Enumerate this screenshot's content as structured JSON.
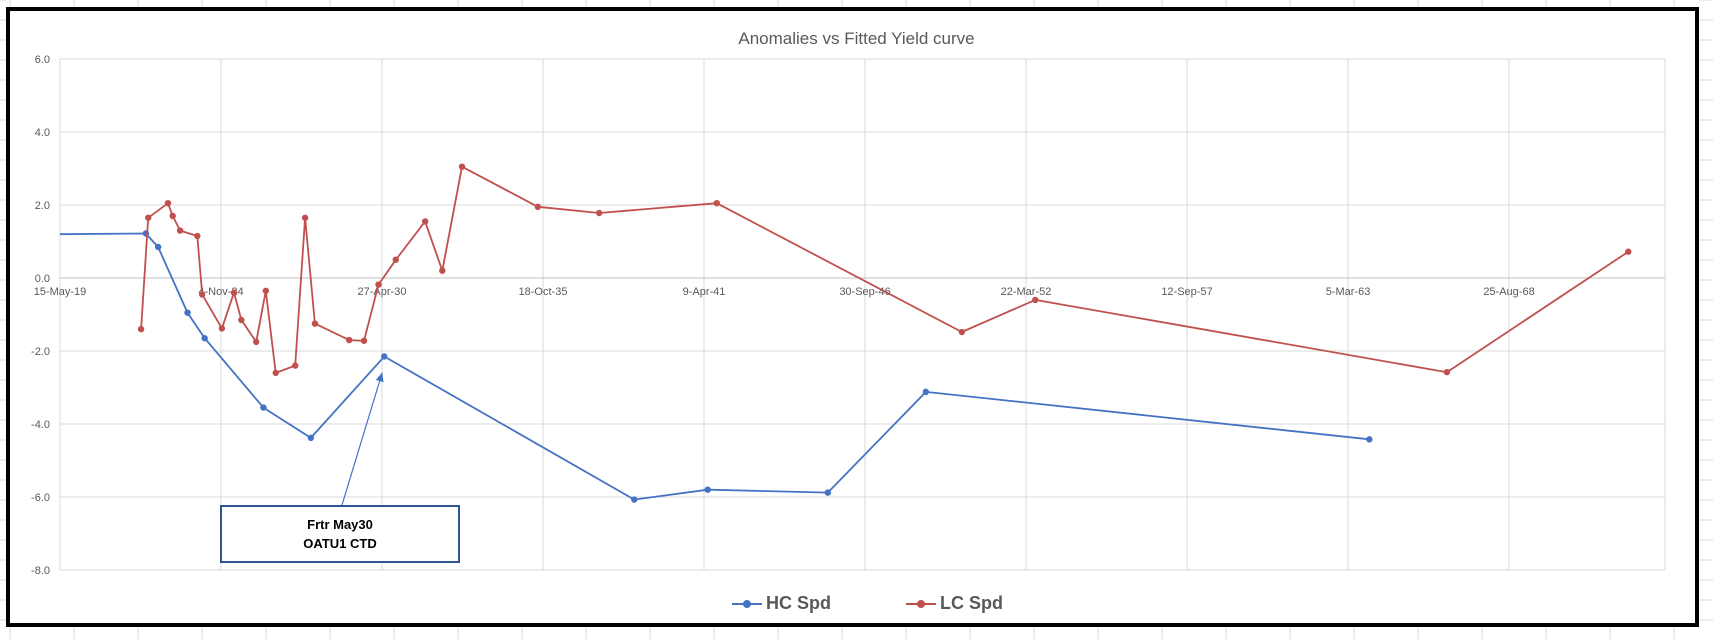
{
  "chart_data": {
    "type": "line",
    "title": "Anomalies vs Fitted Yield curve",
    "xlabel": "",
    "ylabel": "",
    "x_axis": {
      "type": "date",
      "min": "2019-05-15",
      "max": "2072-04-01",
      "ticks": [
        {
          "date": "2019-05-15",
          "label": "15-May-19"
        },
        {
          "date": "2024-11-04",
          "label": "4-Nov-24"
        },
        {
          "date": "2030-04-27",
          "label": "27-Apr-30"
        },
        {
          "date": "2035-10-18",
          "label": "18-Oct-35"
        },
        {
          "date": "2041-04-09",
          "label": "9-Apr-41"
        },
        {
          "date": "2046-09-30",
          "label": "30-Sep-46"
        },
        {
          "date": "2052-03-22",
          "label": "22-Mar-52"
        },
        {
          "date": "2057-09-12",
          "label": "12-Sep-57"
        },
        {
          "date": "2063-03-05",
          "label": "5-Mar-63"
        },
        {
          "date": "2068-08-25",
          "label": "25-Aug-68"
        }
      ]
    },
    "y_axis": {
      "min": -8.0,
      "max": 6.0,
      "ticks": [
        {
          "value": 6.0,
          "label": "6.0"
        },
        {
          "value": 4.0,
          "label": "4.0"
        },
        {
          "value": 2.0,
          "label": "2.0"
        },
        {
          "value": 0.0,
          "label": "0.0"
        },
        {
          "value": -2.0,
          "label": "-2.0"
        },
        {
          "value": -4.0,
          "label": "-4.0"
        },
        {
          "value": -6.0,
          "label": "-6.0"
        },
        {
          "value": -8.0,
          "label": "-8.0"
        }
      ]
    },
    "grid": true,
    "legend_position": "bottom",
    "series": [
      {
        "name": "HC Spd",
        "color": "#4472C4",
        "points": [
          {
            "x": "2019-05-15",
            "y": 1.2,
            "marker": false
          },
          {
            "x": "2022-04-15",
            "y": 1.22
          },
          {
            "x": "2022-09-15",
            "y": 0.85
          },
          {
            "x": "2023-09-15",
            "y": -0.95
          },
          {
            "x": "2024-04-15",
            "y": -1.65
          },
          {
            "x": "2026-04-15",
            "y": -3.55
          },
          {
            "x": "2027-11-25",
            "y": -4.38
          },
          {
            "x": "2030-05-25",
            "y": -2.15
          },
          {
            "x": "2038-11-25",
            "y": -6.07
          },
          {
            "x": "2041-05-25",
            "y": -5.8
          },
          {
            "x": "2045-06-25",
            "y": -5.88
          },
          {
            "x": "2048-10-25",
            "y": -3.12
          },
          {
            "x": "2063-11-25",
            "y": -4.42
          }
        ]
      },
      {
        "name": "LC Spd",
        "color": "#C0504D",
        "points": [
          {
            "x": "2022-02-15",
            "y": -1.4
          },
          {
            "x": "2022-05-15",
            "y": 1.65
          },
          {
            "x": "2023-01-15",
            "y": 2.05
          },
          {
            "x": "2023-03-15",
            "y": 1.7
          },
          {
            "x": "2023-06-15",
            "y": 1.3
          },
          {
            "x": "2024-01-15",
            "y": 1.15
          },
          {
            "x": "2024-03-15",
            "y": -0.45
          },
          {
            "x": "2024-11-15",
            "y": -1.38
          },
          {
            "x": "2025-04-15",
            "y": -0.4
          },
          {
            "x": "2025-07-15",
            "y": -1.15
          },
          {
            "x": "2026-01-15",
            "y": -1.75
          },
          {
            "x": "2026-05-15",
            "y": -0.35
          },
          {
            "x": "2026-09-15",
            "y": -2.6
          },
          {
            "x": "2027-05-15",
            "y": -2.4
          },
          {
            "x": "2027-09-15",
            "y": 1.65
          },
          {
            "x": "2028-01-15",
            "y": -1.25
          },
          {
            "x": "2029-03-15",
            "y": -1.7
          },
          {
            "x": "2029-09-15",
            "y": -1.72
          },
          {
            "x": "2030-03-15",
            "y": -0.18
          },
          {
            "x": "2030-10-15",
            "y": 0.5
          },
          {
            "x": "2031-10-15",
            "y": 1.55
          },
          {
            "x": "2032-05-15",
            "y": 0.2
          },
          {
            "x": "2033-01-15",
            "y": 3.05
          },
          {
            "x": "2035-08-15",
            "y": 1.95
          },
          {
            "x": "2037-09-15",
            "y": 1.78
          },
          {
            "x": "2041-09-15",
            "y": 2.05
          },
          {
            "x": "2050-01-15",
            "y": -1.48
          },
          {
            "x": "2052-07-15",
            "y": -0.6
          },
          {
            "x": "2066-07-15",
            "y": -2.58
          },
          {
            "x": "2072-09-15",
            "y": 0.72
          }
        ]
      }
    ],
    "annotations": [
      {
        "lines": [
          "Frtr May30",
          "OATU1 CTD"
        ],
        "points_to": {
          "series": "HC Spd",
          "x": "2030-05-25",
          "y": -2.15
        }
      }
    ]
  }
}
